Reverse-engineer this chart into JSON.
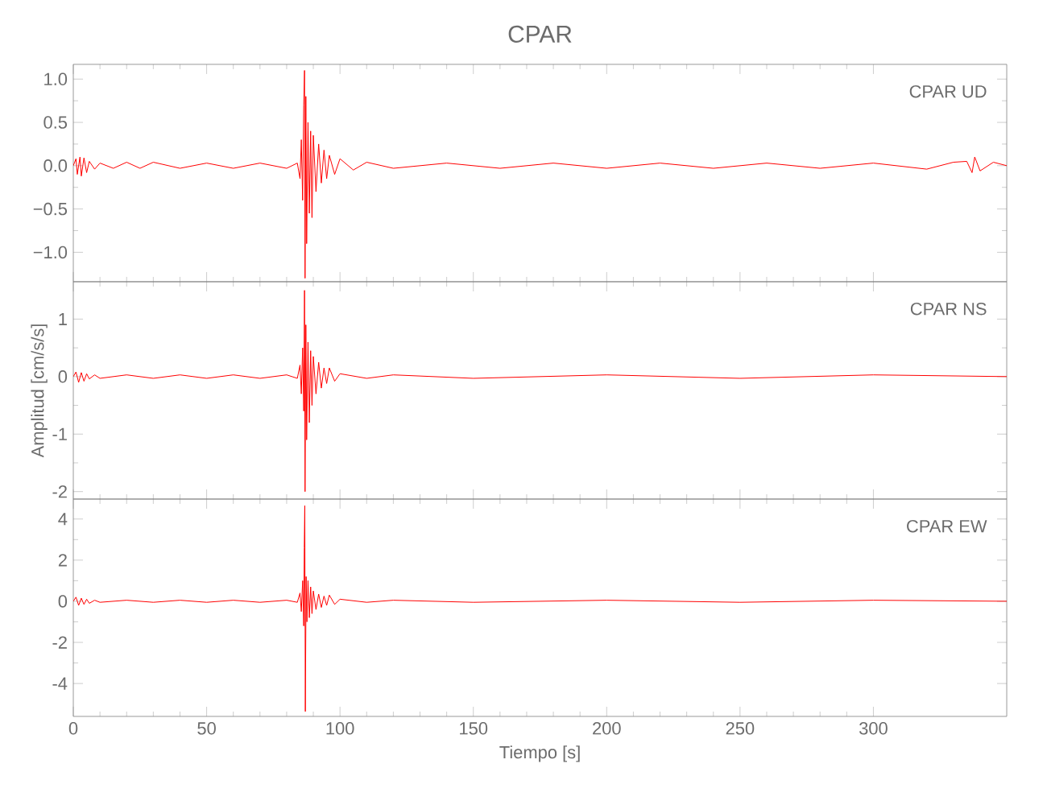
{
  "chart_data": [
    {
      "type": "line",
      "title": "CPAR",
      "annotations": [
        "CPAR UD"
      ],
      "tick_labels": "y",
      "color": "#ff0000",
      "x": [
        0,
        1,
        1.5,
        2.5,
        3,
        4,
        5,
        6,
        8,
        10,
        15,
        20,
        25,
        30,
        40,
        50,
        60,
        70,
        80,
        84,
        85,
        85.5,
        86,
        86.4,
        86.7,
        86.9,
        87.2,
        87.5,
        88,
        88.5,
        89,
        89.5,
        90,
        91,
        92,
        93,
        94,
        95,
        96,
        98,
        100,
        105,
        110,
        120,
        140,
        160,
        180,
        200,
        220,
        240,
        260,
        280,
        300,
        320,
        330,
        335,
        337,
        338,
        340,
        345,
        350
      ],
      "values": [
        0,
        0.08,
        -0.1,
        0.1,
        -0.12,
        0.09,
        -0.08,
        0.05,
        -0.04,
        0.03,
        -0.03,
        0.04,
        -0.03,
        0.04,
        -0.03,
        0.03,
        -0.03,
        0.03,
        -0.03,
        0.03,
        -0.15,
        0.3,
        -0.4,
        0.7,
        1.1,
        -1.3,
        0.8,
        -0.9,
        0.5,
        -0.55,
        0.4,
        -0.6,
        0.35,
        -0.3,
        0.25,
        -0.2,
        0.18,
        -0.15,
        0.12,
        -0.1,
        0.08,
        -0.05,
        0.04,
        -0.03,
        0.03,
        -0.03,
        0.03,
        -0.03,
        0.03,
        -0.03,
        0.03,
        -0.03,
        0.03,
        -0.04,
        0.04,
        0.05,
        -0.08,
        0.1,
        -0.06,
        0.04,
        0
      ],
      "xlim": [
        0,
        350
      ],
      "xticks": [
        0,
        50,
        100,
        150,
        200,
        250,
        300
      ],
      "ylim": [
        -1.34,
        1.17
      ],
      "yticks": [
        {
          "value": -1,
          "label": "−1.0"
        },
        {
          "value": -0.5,
          "label": "−0.5"
        },
        {
          "value": 0,
          "label": "0.0"
        },
        {
          "value": 0.5,
          "label": "0.5"
        },
        {
          "value": 1,
          "label": "1.0"
        }
      ]
    },
    {
      "type": "line",
      "ylabel": "Amplitud [cm/s/s]",
      "annotations": [
        "CPAR NS"
      ],
      "tick_labels": "y",
      "color": "#ff0000",
      "x": [
        0,
        1,
        2,
        3,
        4,
        5,
        6,
        8,
        10,
        20,
        30,
        40,
        50,
        60,
        70,
        80,
        84,
        85,
        85.5,
        86,
        86.4,
        86.7,
        86.9,
        87.2,
        87.5,
        88,
        88.5,
        89,
        89.5,
        90,
        91,
        92,
        93,
        94,
        95,
        96,
        98,
        100,
        110,
        120,
        150,
        200,
        250,
        300,
        350
      ],
      "values": [
        0,
        0.08,
        -0.1,
        0.07,
        -0.08,
        0.05,
        -0.04,
        0.03,
        -0.03,
        0.03,
        -0.03,
        0.03,
        -0.03,
        0.03,
        -0.03,
        0.03,
        -0.03,
        0.2,
        -0.3,
        0.5,
        -0.6,
        1.5,
        -2.0,
        0.9,
        -1.1,
        0.6,
        -0.8,
        0.45,
        -0.5,
        0.35,
        -0.3,
        0.25,
        -0.2,
        0.15,
        -0.12,
        0.15,
        -0.08,
        0.05,
        -0.03,
        0.03,
        -0.03,
        0.03,
        -0.03,
        0.03,
        0
      ],
      "xlim": [
        0,
        350
      ],
      "xticks": [
        0,
        50,
        100,
        150,
        200,
        250,
        300
      ],
      "ylim": [
        -2.13,
        1.65
      ],
      "yticks": [
        -2,
        -1,
        0,
        1
      ]
    },
    {
      "type": "line",
      "xlabel": "Tiempo [s]",
      "annotations": [
        "CPAR EW"
      ],
      "color": "#ff0000",
      "x": [
        0,
        1,
        2,
        3,
        4,
        5,
        6,
        8,
        10,
        20,
        30,
        40,
        50,
        60,
        70,
        80,
        84,
        85,
        85.5,
        86,
        86.4,
        86.6,
        86.8,
        87,
        87.3,
        87.6,
        88,
        88.5,
        89,
        89.5,
        90,
        91,
        92,
        93,
        94,
        95,
        96,
        98,
        100,
        110,
        120,
        150,
        200,
        250,
        300,
        350
      ],
      "values": [
        0,
        0.2,
        -0.2,
        0.15,
        -0.15,
        0.1,
        -0.1,
        0.05,
        -0.05,
        0.05,
        -0.05,
        0.05,
        -0.05,
        0.05,
        -0.05,
        0.05,
        -0.05,
        0.4,
        -0.5,
        1.0,
        -1.2,
        2.6,
        4.65,
        -5.36,
        1.2,
        -1.0,
        1.0,
        -0.8,
        0.7,
        -0.6,
        0.5,
        -0.4,
        0.35,
        -0.3,
        0.25,
        -0.2,
        0.3,
        -0.15,
        0.1,
        -0.05,
        0.05,
        -0.05,
        0.05,
        -0.05,
        0.05,
        0
      ],
      "xlim": [
        0,
        350
      ],
      "xticks": [
        0,
        50,
        100,
        150,
        200,
        250,
        300
      ],
      "ylim": [
        -5.6,
        4.97
      ],
      "yticks": [
        -4,
        -2,
        0,
        2,
        4
      ]
    }
  ]
}
